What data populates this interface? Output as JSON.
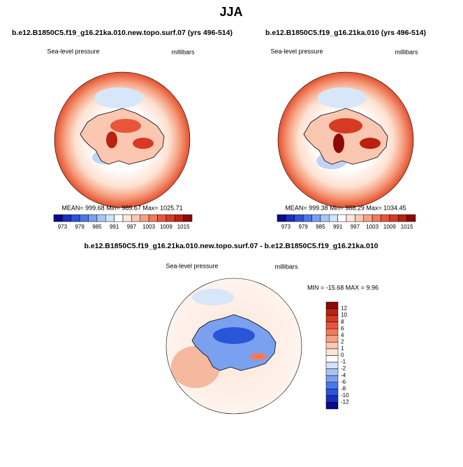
{
  "title": "JJA",
  "panels": [
    {
      "title": "b.e12.B1850C5.f19_g16.21ka.010.new.topo.surf.07 (yrs 496-514)",
      "left_label": "Sea-level pressure",
      "right_label": "millibars",
      "stats": "MEAN= 999.68  Min= 989.67  Max= 1025.71"
    },
    {
      "title": "b.e12.B1850C5.f19_g16.21ka.010 (yrs 496-514)",
      "left_label": "Sea-level pressure",
      "right_label": "millibars",
      "stats": "MEAN= 999.38  Min= 988.29  Max= 1034.45"
    }
  ],
  "colorbar": {
    "colors": [
      "#0a0a8c",
      "#1a2fc0",
      "#2a55d8",
      "#4a78e8",
      "#7aa0f0",
      "#a8c4f5",
      "#d2e2fa",
      "#ffffff",
      "#fde5d8",
      "#fbc7b0",
      "#f7a184",
      "#f27a5a",
      "#e8553a",
      "#d63a22",
      "#b8220f",
      "#8a0a05"
    ],
    "labels": [
      973,
      979,
      985,
      991,
      997,
      1003,
      1009,
      1015
    ]
  },
  "diff": {
    "title": "b.e12.B1850C5.f19_g16.21ka.010.new.topo.surf.07 - b.e12.B1850C5.f19_g16.21ka.010",
    "left_label": "Sea-level pressure",
    "right_label": "millibars",
    "stats": "MIN = -15.68 MAX =   9.96",
    "colorbar": {
      "colors": [
        "#8a0a05",
        "#b8220f",
        "#d63a22",
        "#e8553a",
        "#f27a5a",
        "#f7a184",
        "#fbc7b0",
        "#fde5d8",
        "#ffffff",
        "#d2e2fa",
        "#a8c4f5",
        "#7aa0f0",
        "#4a78e8",
        "#2a55d8",
        "#1a2fc0",
        "#0a0a8c"
      ],
      "labels": [
        12,
        10,
        8,
        6,
        4,
        2,
        1,
        0,
        -1,
        -2,
        -4,
        -6,
        -8,
        -10,
        -12
      ]
    }
  }
}
